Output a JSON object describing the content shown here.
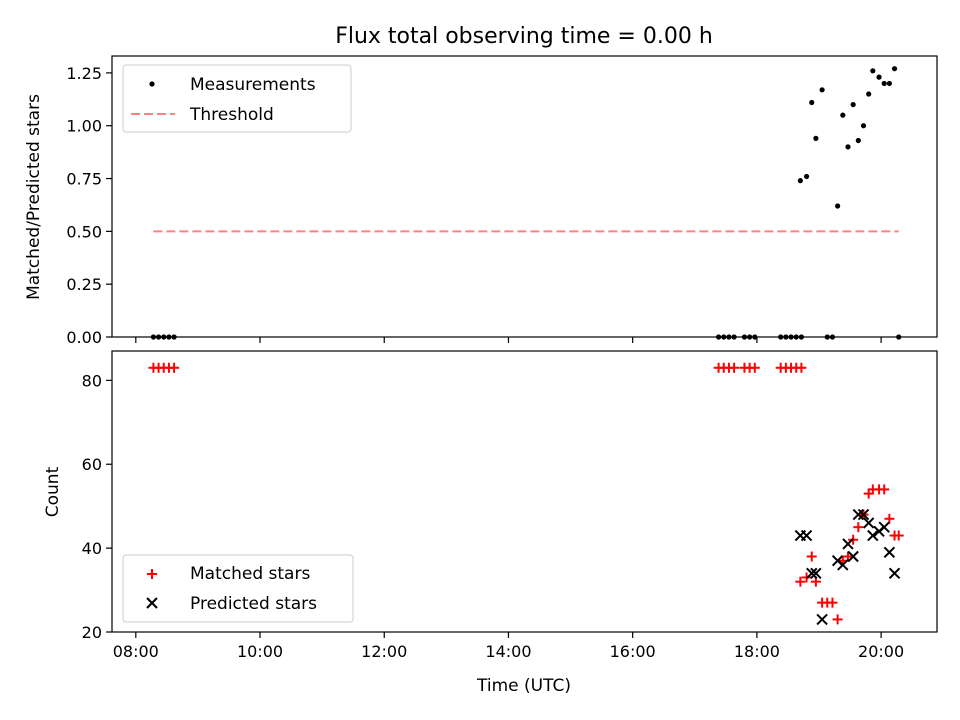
{
  "chart_data": [
    {
      "type": "scatter",
      "title": "Flux total observing time = 0.00 h",
      "xlabel": "",
      "ylabel": "Matched/Predicted stars",
      "xlim": [
        "07:37",
        "20:54"
      ],
      "ylim": [
        0,
        1.33
      ],
      "x_ticks": [
        "08:00",
        "10:00",
        "12:00",
        "14:00",
        "16:00",
        "18:00",
        "20:00"
      ],
      "y_ticks": [
        "0.00",
        "0.25",
        "0.50",
        "0.75",
        "1.00",
        "1.25"
      ],
      "legend": {
        "placement": "top-left"
      },
      "series": [
        {
          "name": "Measurements",
          "marker": "dot",
          "color": "#000000",
          "points": [
            [
              "08:17",
              0
            ],
            [
              "08:22",
              0
            ],
            [
              "08:27",
              0
            ],
            [
              "08:32",
              0
            ],
            [
              "08:37",
              0
            ],
            [
              "17:23",
              0
            ],
            [
              "17:28",
              0
            ],
            [
              "17:33",
              0
            ],
            [
              "17:38",
              0
            ],
            [
              "17:48",
              0
            ],
            [
              "17:53",
              0
            ],
            [
              "17:58",
              0
            ],
            [
              "18:23",
              0
            ],
            [
              "18:28",
              0
            ],
            [
              "18:33",
              0
            ],
            [
              "18:38",
              0
            ],
            [
              "18:43",
              0
            ],
            [
              "19:08",
              0
            ],
            [
              "19:13",
              0
            ],
            [
              "20:17",
              0
            ],
            [
              "18:42",
              0.74
            ],
            [
              "18:48",
              0.76
            ],
            [
              "18:53",
              1.11
            ],
            [
              "18:57",
              0.94
            ],
            [
              "19:03",
              1.17
            ],
            [
              "19:18",
              0.62
            ],
            [
              "19:23",
              1.05
            ],
            [
              "19:28",
              0.9
            ],
            [
              "19:33",
              1.1
            ],
            [
              "19:38",
              0.93
            ],
            [
              "19:43",
              1.0
            ],
            [
              "19:48",
              1.15
            ],
            [
              "19:52",
              1.26
            ],
            [
              "19:58",
              1.23
            ],
            [
              "20:03",
              1.2
            ],
            [
              "20:08",
              1.2
            ],
            [
              "20:13",
              1.27
            ]
          ]
        },
        {
          "name": "Threshold",
          "marker": "dashed-line",
          "color": "#ff8080",
          "points": [
            [
              "08:17",
              0.5
            ],
            [
              "20:17",
              0.5
            ]
          ]
        }
      ]
    },
    {
      "type": "scatter",
      "title": "",
      "xlabel": "Time (UTC)",
      "ylabel": "Count",
      "xlim": [
        "07:37",
        "20:54"
      ],
      "ylim": [
        20,
        87
      ],
      "x_ticks": [
        "08:00",
        "10:00",
        "12:00",
        "14:00",
        "16:00",
        "18:00",
        "20:00"
      ],
      "y_ticks": [
        "20",
        "40",
        "60",
        "80"
      ],
      "legend": {
        "placement": "bottom-left"
      },
      "series": [
        {
          "name": "Matched stars",
          "marker": "plus",
          "color": "#ff0000",
          "points": [
            [
              "08:17",
              83
            ],
            [
              "08:22",
              83
            ],
            [
              "08:27",
              83
            ],
            [
              "08:32",
              83
            ],
            [
              "08:37",
              83
            ],
            [
              "17:23",
              83
            ],
            [
              "17:28",
              83
            ],
            [
              "17:33",
              83
            ],
            [
              "17:38",
              83
            ],
            [
              "17:48",
              83
            ],
            [
              "17:53",
              83
            ],
            [
              "17:58",
              83
            ],
            [
              "18:23",
              83
            ],
            [
              "18:28",
              83
            ],
            [
              "18:33",
              83
            ],
            [
              "18:38",
              83
            ],
            [
              "18:43",
              83
            ],
            [
              "18:42",
              32
            ],
            [
              "18:48",
              33
            ],
            [
              "18:53",
              38
            ],
            [
              "18:57",
              32
            ],
            [
              "19:03",
              27
            ],
            [
              "19:08",
              27
            ],
            [
              "19:13",
              27
            ],
            [
              "19:18",
              23
            ],
            [
              "19:23",
              37
            ],
            [
              "19:28",
              38
            ],
            [
              "19:33",
              42
            ],
            [
              "19:38",
              45
            ],
            [
              "19:43",
              48
            ],
            [
              "19:48",
              53
            ],
            [
              "19:52",
              54
            ],
            [
              "19:58",
              54
            ],
            [
              "20:03",
              54
            ],
            [
              "20:08",
              47
            ],
            [
              "20:13",
              43
            ],
            [
              "20:17",
              43
            ]
          ]
        },
        {
          "name": "Predicted stars",
          "marker": "cross",
          "color": "#000000",
          "points": [
            [
              "18:42",
              43
            ],
            [
              "18:48",
              43
            ],
            [
              "18:53",
              34
            ],
            [
              "18:57",
              34
            ],
            [
              "19:03",
              23
            ],
            [
              "19:18",
              37
            ],
            [
              "19:23",
              36
            ],
            [
              "19:28",
              41
            ],
            [
              "19:33",
              38
            ],
            [
              "19:38",
              48
            ],
            [
              "19:43",
              48
            ],
            [
              "19:48",
              46
            ],
            [
              "19:52",
              43
            ],
            [
              "19:58",
              44
            ],
            [
              "20:03",
              45
            ],
            [
              "20:08",
              39
            ],
            [
              "20:13",
              34
            ]
          ]
        }
      ]
    }
  ]
}
